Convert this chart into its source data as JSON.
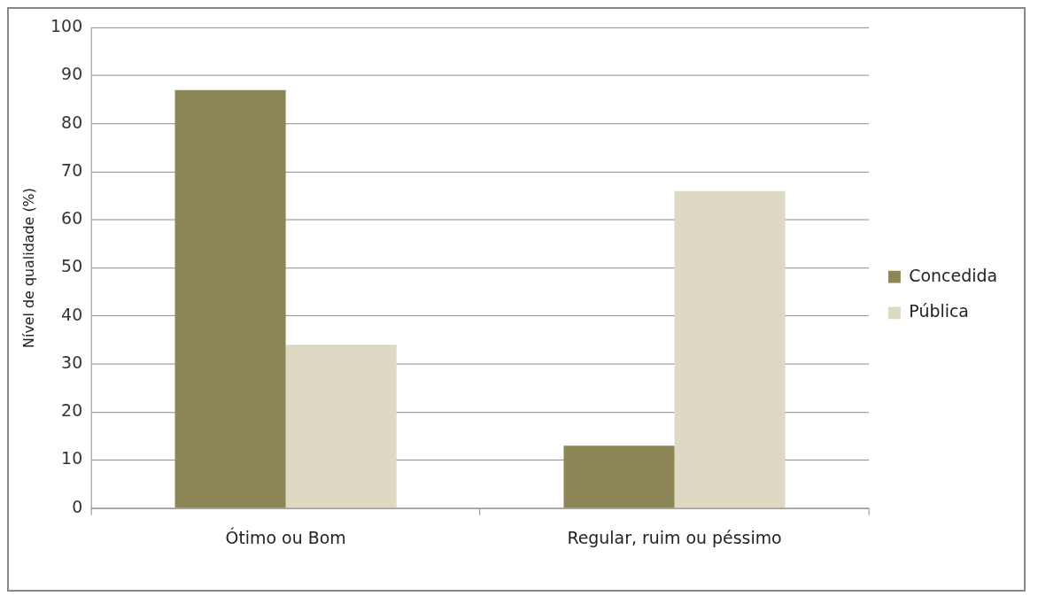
{
  "chart_data": {
    "type": "bar",
    "ylabel": "Nível de qualidade (%)",
    "categories": [
      "Ótimo ou Bom",
      "Regular, ruim ou péssimo"
    ],
    "series": [
      {
        "name": "Concedida",
        "color": "#8c8656",
        "values": [
          87,
          13
        ]
      },
      {
        "name": "Pública",
        "color": "#ddd9c3",
        "values": [
          34,
          66
        ]
      }
    ],
    "ylim": [
      0,
      100
    ],
    "yticks": [
      0,
      10,
      20,
      30,
      40,
      50,
      60,
      70,
      80,
      90,
      100
    ],
    "grid": "y",
    "legend": "right"
  }
}
